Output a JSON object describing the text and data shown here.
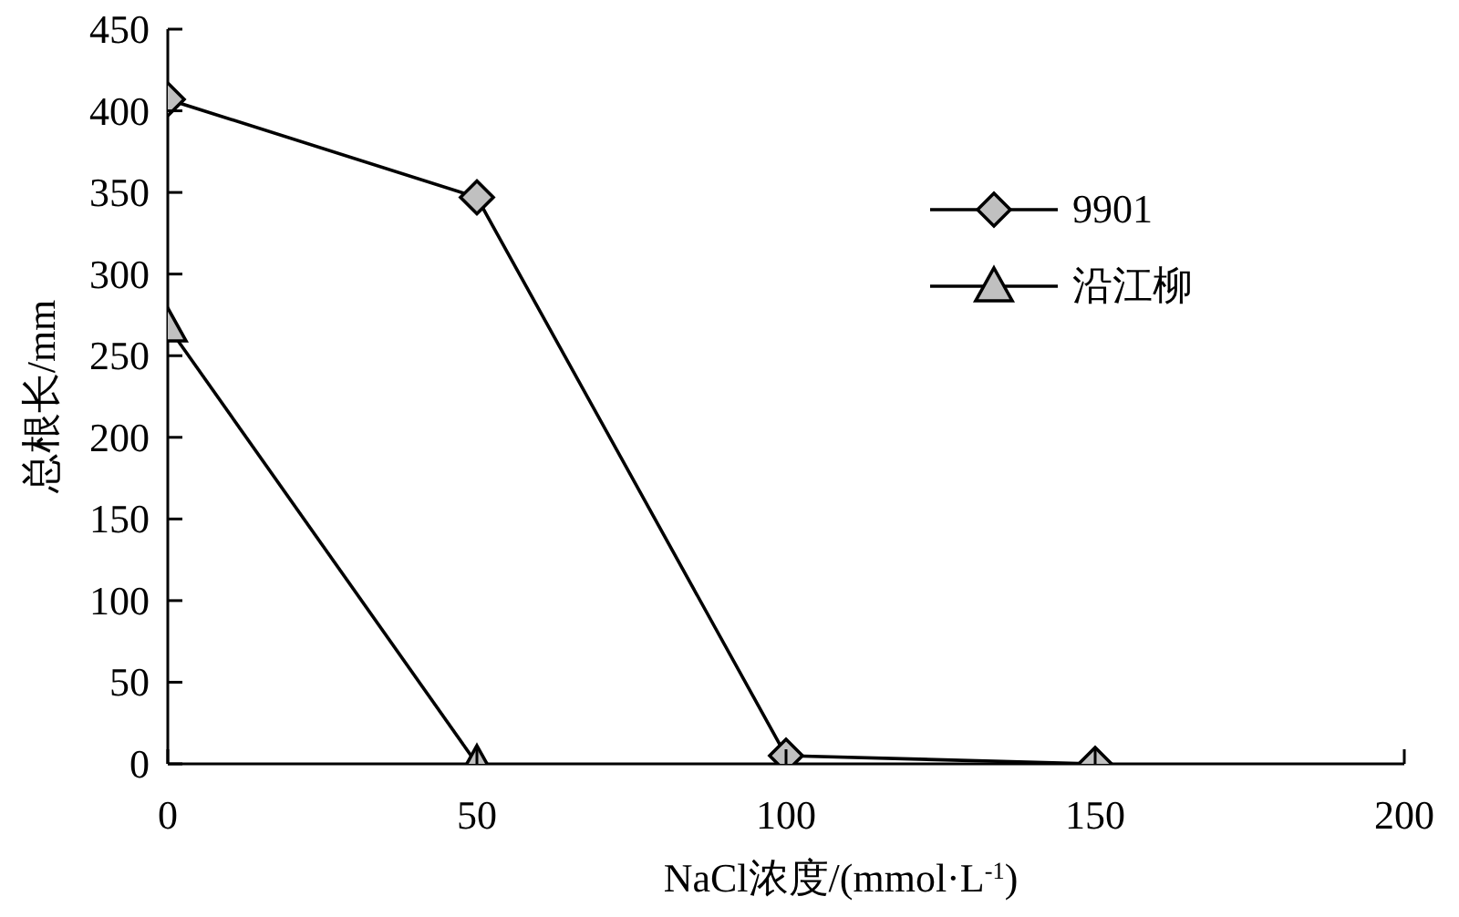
{
  "chart_data": {
    "type": "line",
    "xlabel": "NaCl浓度/(mmol·L$^{-1}$)",
    "ylabel": "总根长/mm",
    "xlim": [
      0,
      200
    ],
    "xticks": [
      0,
      50,
      100,
      150,
      200
    ],
    "ylim": [
      0,
      450
    ],
    "yticks": [
      0,
      50,
      100,
      150,
      200,
      250,
      300,
      350,
      400,
      450
    ],
    "legend": "top right",
    "line_style": "solid",
    "series": [
      {
        "name": "9901",
        "color": "#000000",
        "marker": "diamond",
        "x": [
          0,
          50,
          100,
          150
        ],
        "values": [
          407,
          347,
          5,
          0
        ]
      },
      {
        "name": "沿江柳",
        "color": "#000000",
        "marker": "triangle",
        "x": [
          0,
          50
        ],
        "values": [
          268,
          0
        ]
      }
    ]
  }
}
